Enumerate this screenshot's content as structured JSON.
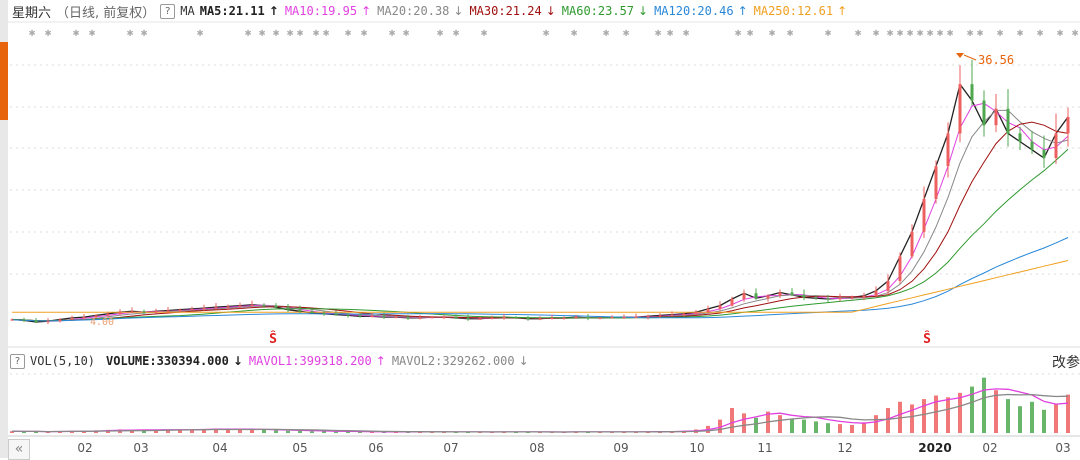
{
  "header": {
    "title": "星期六",
    "subtitle": "（日线, 前复权）",
    "help": "?",
    "indicator": "MA",
    "ma_items": [
      {
        "label": "MA5:21.11",
        "arrow": "↑",
        "color": "#222222"
      },
      {
        "label": "MA10:19.95",
        "arrow": "↑",
        "color": "#e040e0"
      },
      {
        "label": "MA20:20.38",
        "arrow": "↓",
        "color": "#888888"
      },
      {
        "label": "MA30:21.24",
        "arrow": "↓",
        "color": "#a01010"
      },
      {
        "label": "MA60:23.57",
        "arrow": "↓",
        "color": "#2e9a2e"
      },
      {
        "label": "MA120:20.46",
        "arrow": "↑",
        "color": "#2a88d8"
      },
      {
        "label": "MA250:12.61",
        "arrow": "↑",
        "color": "#f0a020"
      }
    ]
  },
  "volume_header": {
    "help": "?",
    "indicator": "VOL(5,10)",
    "items": [
      {
        "label": "VOLUME:330394.000",
        "arrow": "↓",
        "color": "#222222"
      },
      {
        "label": "MAVOL1:399318.200",
        "arrow": "↑",
        "color": "#e040e0"
      },
      {
        "label": "MAVOL2:329262.000",
        "arrow": "↓",
        "color": "#888888"
      }
    ],
    "modify_params": "改参"
  },
  "price_annotations": {
    "high": "36.56",
    "low": "4.00"
  },
  "signal_marker": "Ŝ",
  "scroll_left": "«",
  "colors": {
    "up": "#ee6060",
    "down": "#4fa84f",
    "accent": "#e8640c"
  },
  "x_axis_labels": [
    "02",
    "03",
    "04",
    "05",
    "06",
    "07",
    "08",
    "09",
    "10",
    "11",
    "12",
    "2020",
    "02",
    "03"
  ],
  "chart_data": {
    "type": "candlestick",
    "closes": [
      4.3,
      4.2,
      4.0,
      4.1,
      4.3,
      4.5,
      4.6,
      4.8,
      5.0,
      5.2,
      5.3,
      5.2,
      5.3,
      5.4,
      5.5,
      5.6,
      5.7,
      5.8,
      5.9,
      6.0,
      6.1,
      6.0,
      5.8,
      5.5,
      5.3,
      5.1,
      5.0,
      4.9,
      4.8,
      4.7,
      4.7,
      4.6,
      4.6,
      4.5,
      4.5,
      4.6,
      4.6,
      4.5,
      4.4,
      4.4,
      4.5,
      4.6,
      4.5,
      4.4,
      4.4,
      4.5,
      4.5,
      4.6,
      4.5,
      4.5,
      4.6,
      4.6,
      4.6,
      4.7,
      4.8,
      4.9,
      5.0,
      5.2,
      5.6,
      6.0,
      6.8,
      7.5,
      6.9,
      7.2,
      7.6,
      7.3,
      7.0,
      6.9,
      6.8,
      6.9,
      7.0,
      7.2,
      7.8,
      9,
      12,
      15,
      19,
      23,
      27,
      33,
      31,
      28,
      30,
      27,
      26,
      25,
      24,
      27,
      29
    ],
    "volumes": [
      20000,
      15000,
      18000,
      12000,
      20000,
      25000,
      22000,
      30000,
      35000,
      40000,
      38000,
      30000,
      32000,
      40000,
      42000,
      38000,
      45000,
      48000,
      42000,
      40000,
      38000,
      35000,
      30000,
      25000,
      22000,
      20000,
      18000,
      15000,
      15000,
      14000,
      13000,
      12000,
      12000,
      12000,
      12000,
      13000,
      12000,
      12000,
      11000,
      11000,
      12000,
      13000,
      12000,
      11000,
      11000,
      12000,
      12000,
      13000,
      12000,
      12000,
      13000,
      13000,
      14000,
      16000,
      18000,
      20000,
      25000,
      40000,
      80000,
      150000,
      280000,
      220000,
      170000,
      240000,
      200000,
      160000,
      150000,
      130000,
      110000,
      100000,
      90000,
      120000,
      200000,
      280000,
      350000,
      320000,
      380000,
      420000,
      400000,
      450000,
      520000,
      620000,
      480000,
      380000,
      300000,
      350000,
      260000,
      330000,
      430000
    ],
    "price_ylim": [
      4.0,
      36.56
    ],
    "ma_periods": [
      5,
      10,
      20,
      30,
      60,
      120,
      250
    ],
    "high": 36.56,
    "low": 4.0,
    "grid": true
  }
}
